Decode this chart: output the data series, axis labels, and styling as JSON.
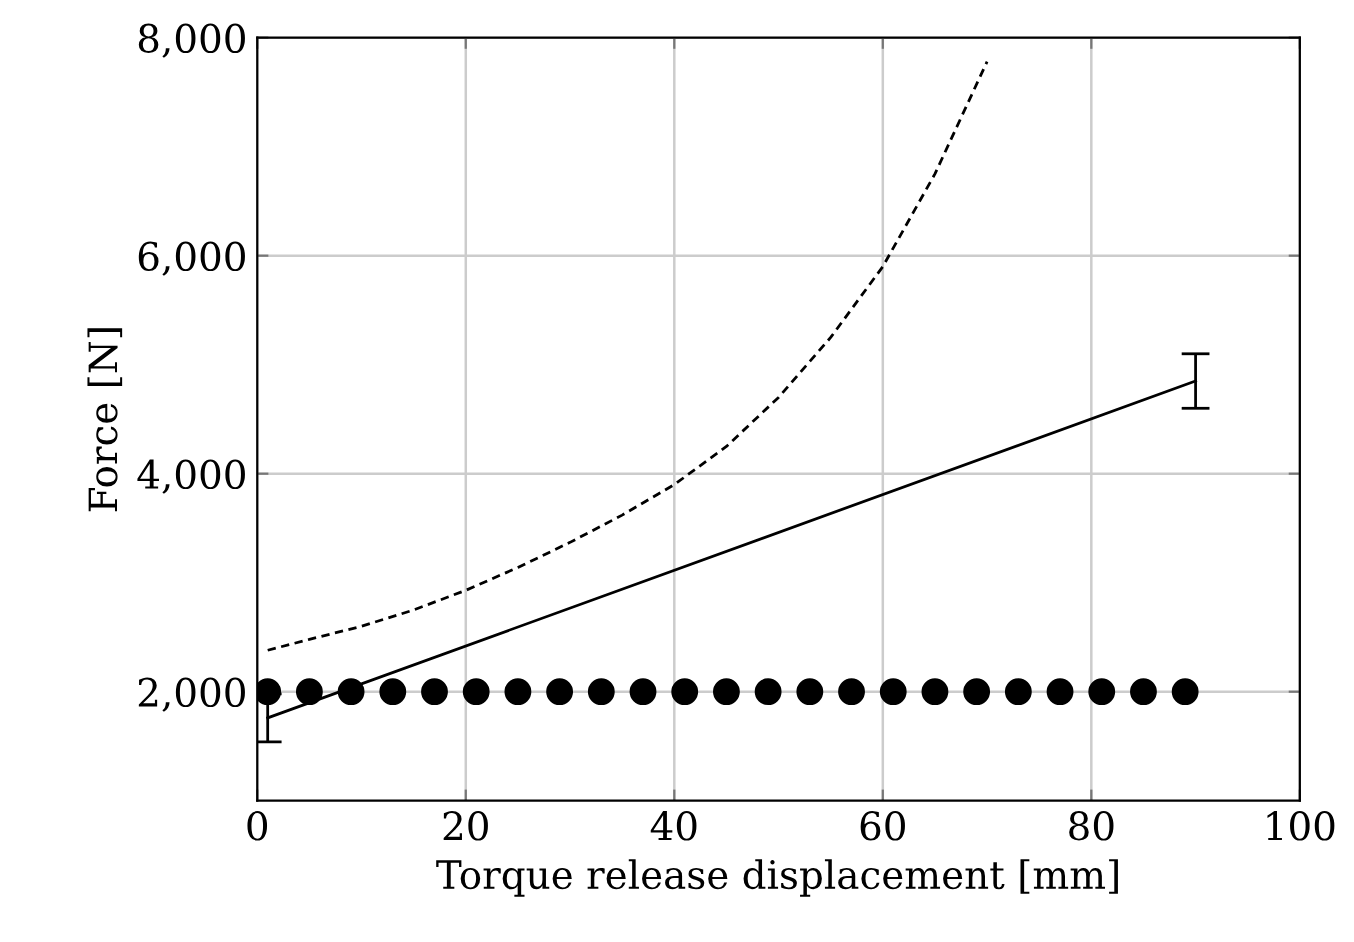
{
  "chart_data": {
    "type": "line",
    "xlabel": "Torque release displacement [mm]",
    "ylabel": "Force [N]",
    "xlim": [
      0,
      100
    ],
    "xticks": [
      0,
      20,
      40,
      60,
      80,
      100
    ],
    "ylim": [
      1000,
      8000
    ],
    "yticks": [
      {
        "value": 2000,
        "label": "2,000"
      },
      {
        "value": 4000,
        "label": "4,000"
      },
      {
        "value": 6000,
        "label": "6,000"
      },
      {
        "value": 8000,
        "label": "8,000"
      }
    ],
    "grid": true,
    "legend": false,
    "series": [
      {
        "color": "#000000",
        "line_style": "dashed",
        "marker": "none",
        "x": [
          1,
          5,
          10,
          15,
          20,
          25,
          30,
          35,
          40,
          45,
          50,
          55,
          60,
          65,
          70
        ],
        "values": [
          2380,
          2480,
          2600,
          2750,
          2930,
          3140,
          3370,
          3620,
          3900,
          4250,
          4700,
          5250,
          5900,
          6750,
          7780
        ]
      },
      {
        "color": "#000000",
        "line_style": "solid",
        "marker": "none",
        "x": [
          1,
          90
        ],
        "values": [
          1760,
          4850
        ],
        "errors": [
          220,
          250
        ]
      },
      {
        "type": "scatter",
        "color": "#000000",
        "marker": "circle",
        "x": [
          1,
          5,
          9,
          13,
          17,
          21,
          25,
          29,
          33,
          37,
          41,
          45,
          49,
          53,
          57,
          61,
          65,
          69,
          73,
          77,
          81,
          85,
          89
        ],
        "values": [
          2000,
          2000,
          2000,
          2000,
          2000,
          2000,
          2000,
          2000,
          2000,
          2000,
          2000,
          2000,
          2000,
          2000,
          2000,
          2000,
          2000,
          2000,
          2000,
          2000,
          2000,
          2000,
          2000
        ]
      }
    ]
  }
}
